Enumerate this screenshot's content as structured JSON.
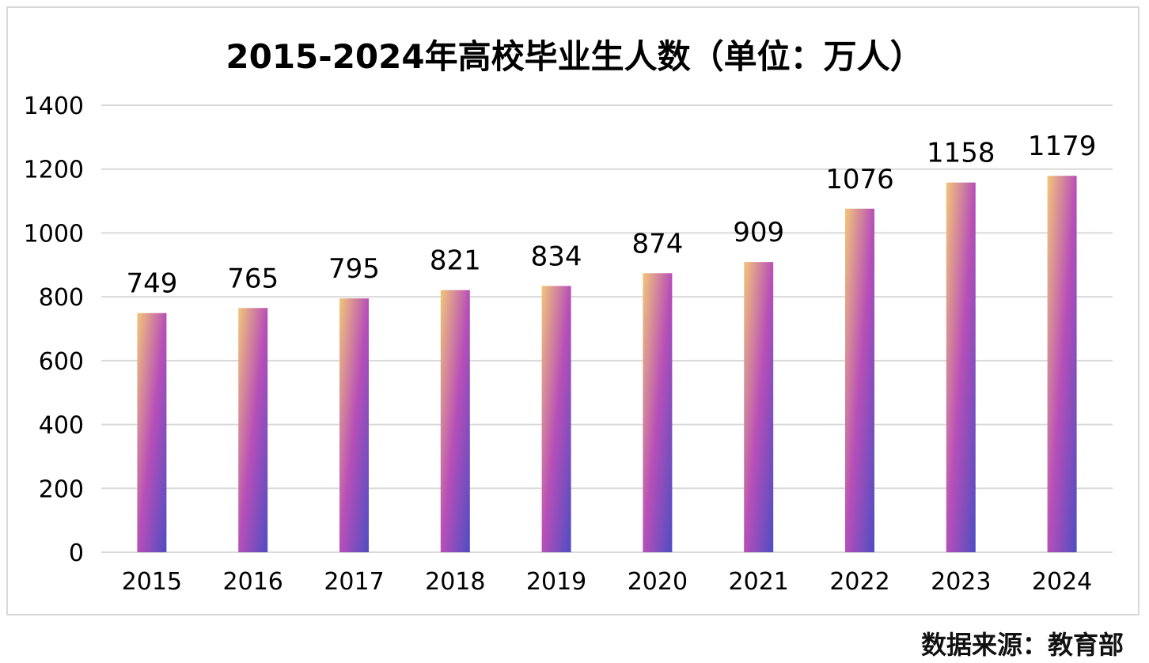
{
  "chart_data": {
    "type": "bar",
    "title": "2015-2024年高校毕业生人数（单位：万人）",
    "categories": [
      "2015",
      "2016",
      "2017",
      "2018",
      "2019",
      "2020",
      "2021",
      "2022",
      "2023",
      "2024"
    ],
    "values": [
      749,
      765,
      795,
      821,
      834,
      874,
      909,
      1076,
      1158,
      1179
    ],
    "xlabel": "",
    "ylabel": "",
    "ylim": [
      0,
      1400
    ],
    "yticks": [
      0,
      200,
      400,
      600,
      800,
      1000,
      1200,
      1400
    ],
    "grid": true,
    "legend": "none",
    "gradient_colors": [
      "#f2c679",
      "#b84fb8",
      "#4e4dc2"
    ],
    "gridline_color": "#d9d9d9"
  },
  "source": "数据来源：教育部"
}
